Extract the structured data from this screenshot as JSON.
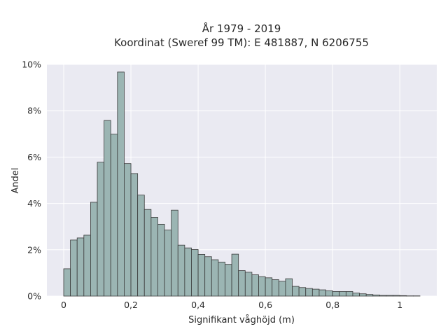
{
  "chart_data": {
    "type": "bar",
    "title_line1": "År 1979 - 2019",
    "title_line2": "Koordinat (Sweref 99 TM): E 481887, N 6206755",
    "xlabel": "Signifikant våghöjd (m)",
    "ylabel": "Andel",
    "xlim": [
      -0.05,
      1.11
    ],
    "ylim": [
      0,
      10
    ],
    "x_ticks": [
      {
        "value": 0,
        "label": "0"
      },
      {
        "value": 0.2,
        "label": "0,2"
      },
      {
        "value": 0.4,
        "label": "0,4"
      },
      {
        "value": 0.6,
        "label": "0,6"
      },
      {
        "value": 0.8,
        "label": "0,8"
      },
      {
        "value": 1,
        "label": "1"
      }
    ],
    "y_ticks": [
      {
        "value": 0,
        "label": "0%"
      },
      {
        "value": 2,
        "label": "2%"
      },
      {
        "value": 4,
        "label": "4%"
      },
      {
        "value": 6,
        "label": "6%"
      },
      {
        "value": 8,
        "label": "8%"
      },
      {
        "value": 10,
        "label": "10%"
      }
    ],
    "bin_width": 0.02,
    "bin_starts": [
      0,
      0.02,
      0.04,
      0.06,
      0.08,
      0.1,
      0.12,
      0.14,
      0.16,
      0.18,
      0.2,
      0.22,
      0.24,
      0.26,
      0.28,
      0.3,
      0.32,
      0.34,
      0.36,
      0.38,
      0.4,
      0.42,
      0.44,
      0.46,
      0.48,
      0.5,
      0.52,
      0.54,
      0.56,
      0.58,
      0.6,
      0.62,
      0.64,
      0.66,
      0.68,
      0.7,
      0.72,
      0.74,
      0.76,
      0.78,
      0.8,
      0.82,
      0.84,
      0.86,
      0.88,
      0.9,
      0.92,
      0.94,
      0.96,
      0.98,
      1.0,
      1.02,
      1.04
    ],
    "values": [
      1.18,
      2.42,
      2.51,
      2.63,
      4.05,
      5.78,
      7.58,
      6.99,
      9.67,
      5.72,
      5.29,
      4.36,
      3.74,
      3.4,
      3.1,
      2.85,
      3.71,
      2.2,
      2.08,
      2.01,
      1.8,
      1.7,
      1.57,
      1.47,
      1.37,
      1.81,
      1.1,
      1.03,
      0.92,
      0.84,
      0.79,
      0.71,
      0.64,
      0.75,
      0.42,
      0.37,
      0.33,
      0.3,
      0.27,
      0.23,
      0.2,
      0.2,
      0.2,
      0.13,
      0.1,
      0.07,
      0.05,
      0.03,
      0.03,
      0.03,
      0.02,
      0.01,
      0.01
    ],
    "grid": true,
    "colors": {
      "background": "#eaeaf2",
      "grid": "#ffffff",
      "bar_fill": "#9bb5b3",
      "bar_stroke": "#3a3a3a"
    }
  }
}
